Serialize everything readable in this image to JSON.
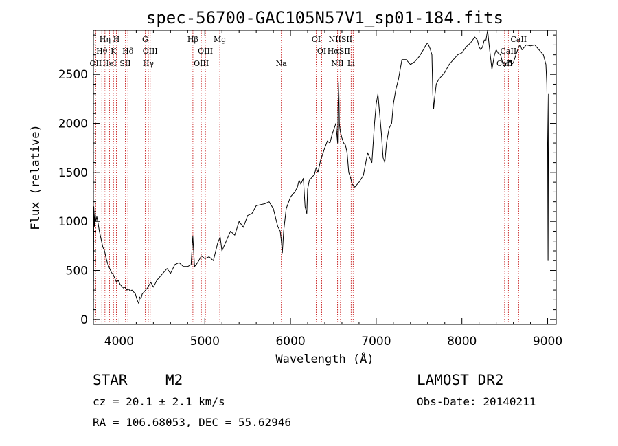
{
  "chart_data": {
    "type": "line",
    "title": "spec-56700-GAC105N57V1_sp01-184.fits",
    "xlabel": "Wavelength (Å)",
    "ylabel": "Flux (relative)",
    "xlim": [
      3700,
      9100
    ],
    "ylim": [
      -50,
      2950
    ],
    "xticks": [
      4000,
      5000,
      6000,
      7000,
      8000,
      9000
    ],
    "yticks": [
      0,
      500,
      1000,
      1500,
      2000,
      2500
    ],
    "grid": false,
    "series": [
      {
        "name": "flux",
        "x": [
          3700,
          3705,
          3712,
          3720,
          3728,
          3740,
          3755,
          3770,
          3790,
          3810,
          3830,
          3850,
          3870,
          3890,
          3910,
          3930,
          3950,
          3970,
          3990,
          4010,
          4030,
          4050,
          4070,
          4090,
          4110,
          4130,
          4150,
          4170,
          4190,
          4210,
          4230,
          4240,
          4255,
          4270,
          4290,
          4310,
          4330,
          4350,
          4370,
          4400,
          4440,
          4480,
          4520,
          4560,
          4600,
          4650,
          4700,
          4750,
          4800,
          4840,
          4860,
          4880,
          4900,
          4930,
          4960,
          5000,
          5050,
          5100,
          5150,
          5180,
          5200,
          5250,
          5300,
          5350,
          5400,
          5450,
          5500,
          5550,
          5600,
          5650,
          5700,
          5750,
          5800,
          5850,
          5880,
          5895,
          5905,
          5920,
          5950,
          6000,
          6050,
          6080,
          6100,
          6120,
          6150,
          6170,
          6190,
          6200,
          6220,
          6250,
          6280,
          6300,
          6320,
          6350,
          6380,
          6400,
          6430,
          6460,
          6490,
          6510,
          6530,
          6550,
          6555,
          6563,
          6570,
          6580,
          6600,
          6620,
          6640,
          6660,
          6680,
          6700,
          6720,
          6750,
          6800,
          6850,
          6900,
          6950,
          6980,
          7000,
          7020,
          7040,
          7060,
          7080,
          7100,
          7120,
          7150,
          7180,
          7200,
          7230,
          7260,
          7300,
          7350,
          7400,
          7450,
          7500,
          7550,
          7580,
          7600,
          7630,
          7650,
          7660,
          7670,
          7680,
          7700,
          7730,
          7760,
          7800,
          7850,
          7900,
          7950,
          8000,
          8050,
          8100,
          8150,
          8180,
          8200,
          8220,
          8240,
          8260,
          8280,
          8300,
          8320,
          8350,
          8380,
          8400,
          8420,
          8450,
          8480,
          8500,
          8520,
          8545,
          8560,
          8580,
          8600,
          8630,
          8662,
          8680,
          8700,
          8750,
          8800,
          8850,
          8900,
          8950,
          8980,
          8990,
          9000,
          9005,
          9010
        ],
        "y": [
          0,
          1150,
          950,
          1100,
          1000,
          1050,
          980,
          900,
          820,
          740,
          700,
          620,
          560,
          520,
          480,
          460,
          420,
          380,
          400,
          360,
          340,
          320,
          330,
          300,
          310,
          290,
          300,
          280,
          260,
          200,
          160,
          230,
          210,
          260,
          280,
          300,
          320,
          350,
          380,
          330,
          400,
          440,
          480,
          520,
          470,
          560,
          580,
          540,
          540,
          560,
          850,
          540,
          560,
          600,
          650,
          620,
          640,
          600,
          780,
          840,
          700,
          800,
          900,
          860,
          1000,
          940,
          1060,
          1080,
          1160,
          1170,
          1180,
          1200,
          1130,
          950,
          900,
          780,
          680,
          900,
          1130,
          1250,
          1300,
          1350,
          1420,
          1380,
          1440,
          1150,
          1080,
          1330,
          1420,
          1450,
          1480,
          1550,
          1500,
          1620,
          1700,
          1750,
          1820,
          1800,
          1900,
          1950,
          2000,
          1800,
          2150,
          2420,
          2000,
          1920,
          1850,
          1800,
          1780,
          1700,
          1500,
          1450,
          1380,
          1350,
          1400,
          1470,
          1700,
          1600,
          2000,
          2200,
          2300,
          2100,
          1900,
          1650,
          1600,
          1800,
          1950,
          2000,
          2200,
          2350,
          2450,
          2650,
          2650,
          2600,
          2630,
          2680,
          2750,
          2800,
          2820,
          2760,
          2700,
          2300,
          2150,
          2250,
          2400,
          2450,
          2480,
          2520,
          2600,
          2650,
          2700,
          2720,
          2780,
          2820,
          2880,
          2850,
          2780,
          2750,
          2780,
          2850,
          2850,
          2950,
          2780,
          2550,
          2700,
          2750,
          2720,
          2700,
          2600,
          2580,
          2620,
          2620,
          2650,
          2600,
          2620,
          2700,
          2780,
          2800,
          2750,
          2800,
          2790,
          2800,
          2750,
          2700,
          2600,
          2400,
          1800,
          600,
          2300
        ]
      }
    ],
    "lines": [
      {
        "wavelength": 3727,
        "label": "OII"
      },
      {
        "wavelength": 3798,
        "label": "Hθ"
      },
      {
        "wavelength": 3835,
        "label": "Hη"
      },
      {
        "wavelength": 3889,
        "label": "HeI"
      },
      {
        "wavelength": 3934,
        "label": "K"
      },
      {
        "wavelength": 3969,
        "label": "H"
      },
      {
        "wavelength": 4072,
        "label": "SII"
      },
      {
        "wavelength": 4102,
        "label": "Hδ"
      },
      {
        "wavelength": 4304,
        "label": "G"
      },
      {
        "wavelength": 4341,
        "label": "Hγ"
      },
      {
        "wavelength": 4363,
        "label": "OIII"
      },
      {
        "wavelength": 4861,
        "label": "Hβ"
      },
      {
        "wavelength": 4959,
        "label": "OIII"
      },
      {
        "wavelength": 5007,
        "label": "OIII"
      },
      {
        "wavelength": 5175,
        "label": "Mg"
      },
      {
        "wavelength": 5893,
        "label": "Na"
      },
      {
        "wavelength": 6300,
        "label": "OI"
      },
      {
        "wavelength": 6364,
        "label": "OI"
      },
      {
        "wavelength": 6548,
        "label": "NII"
      },
      {
        "wavelength": 6563,
        "label": "Hα"
      },
      {
        "wavelength": 6583,
        "label": "NII"
      },
      {
        "wavelength": 6707,
        "label": "Li"
      },
      {
        "wavelength": 6716,
        "label": "SII"
      },
      {
        "wavelength": 6731,
        "label": "SII"
      },
      {
        "wavelength": 8498,
        "label": "CaII"
      },
      {
        "wavelength": 8542,
        "label": "CaII"
      },
      {
        "wavelength": 8662,
        "label": "CaII"
      }
    ],
    "line_label_rows": [
      [
        {
          "text": "Hη",
          "wavelength": 3835
        },
        {
          "text": "H",
          "wavelength": 3969
        },
        {
          "text": "G",
          "wavelength": 4304
        },
        {
          "text": "Hβ",
          "wavelength": 4861
        },
        {
          "text": "Mg",
          "wavelength": 5175
        },
        {
          "text": "OI",
          "wavelength": 6300
        },
        {
          "text": "NIISII",
          "wavelength": 6583
        },
        {
          "text": "CaII",
          "wavelength": 8662
        }
      ],
      [
        {
          "text": "Hθ",
          "wavelength": 3798
        },
        {
          "text": "K",
          "wavelength": 3934
        },
        {
          "text": "Hδ",
          "wavelength": 4102
        },
        {
          "text": "OIII",
          "wavelength": 4363
        },
        {
          "text": "OIII",
          "wavelength": 5007
        },
        {
          "text": "OI",
          "wavelength": 6364
        },
        {
          "text": "HαSII",
          "wavelength": 6563
        },
        {
          "text": "CaII",
          "wavelength": 8542
        }
      ],
      [
        {
          "text": "OII",
          "wavelength": 3727
        },
        {
          "text": "HeI",
          "wavelength": 3889
        },
        {
          "text": "SII",
          "wavelength": 4072
        },
        {
          "text": "Hγ",
          "wavelength": 4341
        },
        {
          "text": "OIII",
          "wavelength": 4959
        },
        {
          "text": "Na",
          "wavelength": 5893
        },
        {
          "text": "NII",
          "wavelength": 6548
        },
        {
          "text": "Li",
          "wavelength": 6707
        },
        {
          "text": "CaII",
          "wavelength": 8498
        }
      ]
    ],
    "info": {
      "class": "STAR",
      "subclass": "M2",
      "cz": "cz = 20.1 ± 2.1 km/s",
      "radec": "RA = 106.68053, DEC =  55.62946",
      "survey": "LAMOST DR2",
      "obsdate": "Obs-Date: 20140211"
    },
    "colors": {
      "spectrum": "#000000",
      "line_markers": "#c00000",
      "axes": "#000000",
      "background": "#ffffff"
    }
  }
}
